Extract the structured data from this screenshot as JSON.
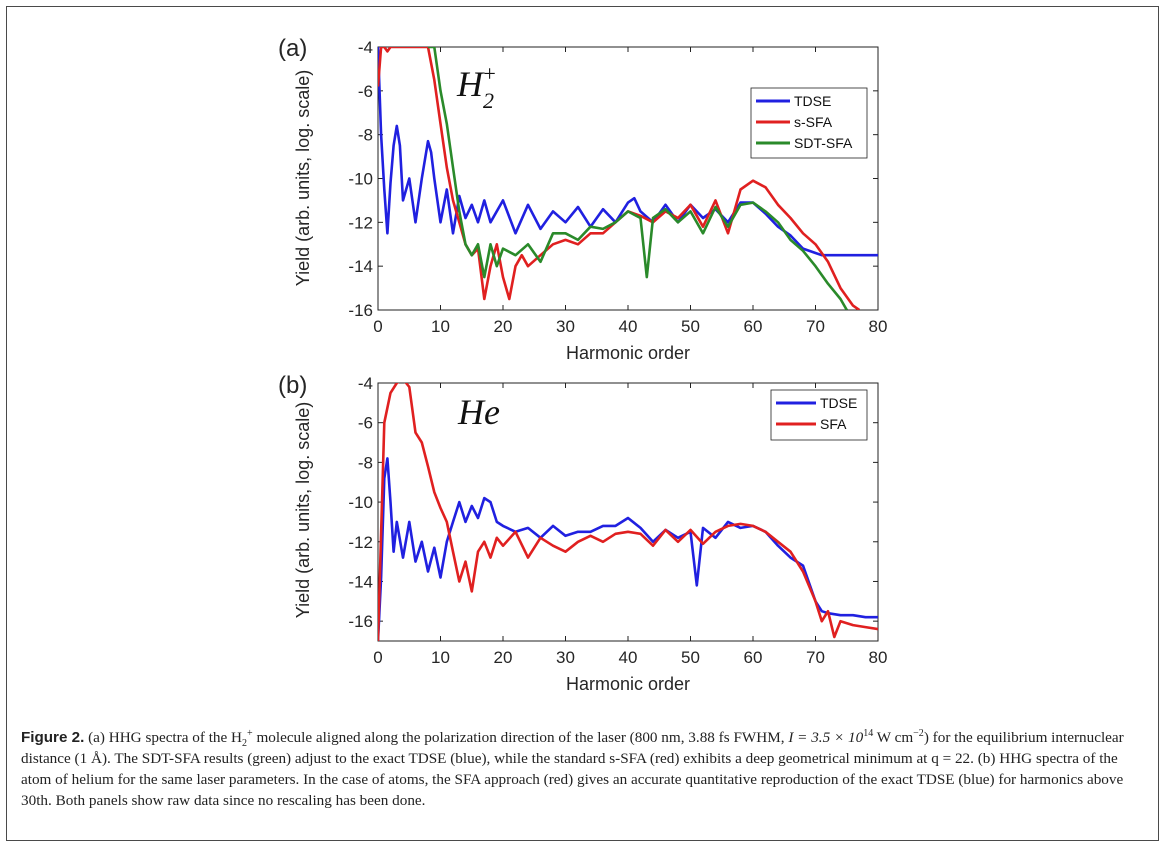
{
  "figure": {
    "caption_label": "Figure 2.",
    "caption_part1": "(a) HHG spectra of the H",
    "caption_sub": "2",
    "caption_sup": "+",
    "caption_part2": " molecule aligned along the polarization direction of the laser (800  nm, 3.88 fs FWHM, ",
    "caption_eq": "I = 3.5 × 10",
    "caption_exp": "14",
    "caption_unit": " W cm",
    "caption_unitexp": "−2",
    "caption_part3": ") for the equilibrium internuclear distance (1 Å). The SDT-SFA results (green) adjust to the exact TDSE (blue), while the standard s-SFA (red) exhibits a deep geometrical minimum at q = 22. (b) HHG spectra of the atom of helium for the same laser parameters. In the case of atoms, the SFA approach (red) gives an accurate quantitative reproduction of the exact TDSE (blue) for harmonics above 30th. Both panels show raw data since no rescaling has been done."
  },
  "chart_data": [
    {
      "type": "line",
      "panel_label": "(a)",
      "annotation": "H",
      "annotation_sub": "2",
      "annotation_sup": "+",
      "xlabel": "Harmonic order",
      "ylabel": "Yield (arb. units, log. scale)",
      "xlim": [
        0,
        80
      ],
      "ylim": [
        -16,
        -4
      ],
      "xticks": [
        0,
        10,
        20,
        30,
        40,
        50,
        60,
        70,
        80
      ],
      "yticks": [
        -4,
        -6,
        -8,
        -10,
        -12,
        -14,
        -16
      ],
      "legend_position": "top-right",
      "series": [
        {
          "name": "TDSE",
          "color": "#2020e0",
          "x": [
            0,
            0.5,
            1,
            1.5,
            2,
            2.5,
            3,
            3.5,
            4,
            5,
            6,
            7,
            8,
            8.5,
            9,
            10,
            11,
            12,
            13,
            14,
            15,
            16,
            17,
            18,
            20,
            22,
            24,
            26,
            28,
            30,
            32,
            34,
            36,
            38,
            40,
            41,
            42,
            44,
            46,
            48,
            50,
            52,
            54,
            56,
            58,
            60,
            62,
            64,
            66,
            68,
            70,
            71,
            72,
            74,
            76,
            78,
            80
          ],
          "y": [
            -4,
            -8,
            -10.5,
            -12.5,
            -10.2,
            -8.5,
            -7.6,
            -8.5,
            -11,
            -10,
            -12,
            -10,
            -8.3,
            -8.8,
            -10,
            -12,
            -10.5,
            -12.5,
            -10.8,
            -11.8,
            -11.2,
            -12,
            -11,
            -12,
            -11,
            -12.5,
            -11.2,
            -12.3,
            -11.5,
            -12,
            -11.3,
            -12.2,
            -11.4,
            -12,
            -11.1,
            -10.9,
            -11.5,
            -12,
            -11.2,
            -12,
            -11.2,
            -11.8,
            -11.4,
            -12,
            -11.1,
            -11.1,
            -11.6,
            -12.2,
            -12.6,
            -13.2,
            -13.4,
            -13.5,
            -13.5,
            -13.5,
            -13.5,
            -13.5,
            -13.5
          ]
        },
        {
          "name": "s-SFA",
          "color": "#e02020",
          "x": [
            0,
            0.5,
            1,
            1.5,
            2,
            5,
            8,
            9,
            10,
            11,
            12,
            13,
            14,
            15,
            16,
            17,
            18,
            19,
            20,
            21,
            22,
            23,
            24,
            26,
            28,
            30,
            32,
            34,
            36,
            38,
            40,
            42,
            44,
            46,
            48,
            50,
            52,
            54,
            56,
            58,
            60,
            62,
            64,
            66,
            68,
            70,
            72,
            74,
            76,
            77
          ],
          "y": [
            -5.8,
            -4,
            -4,
            -4.2,
            -4,
            -4,
            -4,
            -5.5,
            -7.5,
            -9.5,
            -11,
            -12,
            -13,
            -13.5,
            -13.2,
            -15.5,
            -14,
            -13,
            -14.5,
            -15.5,
            -14,
            -13.5,
            -14,
            -13.5,
            -13,
            -12.8,
            -13,
            -12.5,
            -12.5,
            -12,
            -11.5,
            -11.7,
            -12,
            -11.5,
            -11.8,
            -11.2,
            -12.2,
            -11,
            -12.5,
            -10.5,
            -10.1,
            -10.4,
            -11.2,
            -11.8,
            -12.5,
            -13,
            -13.8,
            -15,
            -15.8,
            -16
          ]
        },
        {
          "name": "SDT-SFA",
          "color": "#2a8a2a",
          "x": [
            8,
            9,
            10,
            11,
            12,
            13,
            14,
            15,
            16,
            17,
            18,
            19,
            20,
            22,
            24,
            26,
            28,
            30,
            32,
            34,
            36,
            38,
            40,
            42,
            43,
            44,
            46,
            48,
            50,
            52,
            54,
            56,
            58,
            60,
            62,
            64,
            66,
            68,
            70,
            72,
            74,
            75
          ],
          "y": [
            -4,
            -4,
            -6,
            -7.5,
            -9.5,
            -11.5,
            -13,
            -13.5,
            -13,
            -14.5,
            -13,
            -14,
            -13.2,
            -13.5,
            -13,
            -13.8,
            -12.5,
            -12.5,
            -12.8,
            -12.2,
            -12.3,
            -12,
            -11.5,
            -11.8,
            -14.5,
            -11.8,
            -11.4,
            -12,
            -11.5,
            -12.5,
            -11.3,
            -12.2,
            -11.2,
            -11.1,
            -11.5,
            -12,
            -12.8,
            -13.3,
            -14,
            -14.8,
            -15.5,
            -16
          ]
        }
      ]
    },
    {
      "type": "line",
      "panel_label": "(b)",
      "annotation": "He",
      "xlabel": "Harmonic order",
      "ylabel": "Yield (arb. units, log. scale)",
      "xlim": [
        0,
        80
      ],
      "ylim": [
        -17,
        -4
      ],
      "xticks": [
        0,
        10,
        20,
        30,
        40,
        50,
        60,
        70,
        80
      ],
      "yticks": [
        -4,
        -6,
        -8,
        -10,
        -12,
        -14,
        -16
      ],
      "legend_position": "top-right",
      "series": [
        {
          "name": "TDSE",
          "color": "#2020e0",
          "x": [
            0,
            0.5,
            1,
            1.5,
            2,
            2.5,
            3,
            4,
            5,
            6,
            7,
            8,
            9,
            10,
            11,
            12,
            13,
            14,
            15,
            16,
            17,
            18,
            19,
            20,
            22,
            24,
            26,
            28,
            30,
            32,
            34,
            36,
            38,
            40,
            42,
            44,
            46,
            48,
            50,
            51,
            52,
            54,
            56,
            58,
            60,
            62,
            64,
            66,
            68,
            70,
            71,
            72,
            74,
            76,
            78,
            80
          ],
          "y": [
            -17,
            -13.8,
            -8.8,
            -7.8,
            -10,
            -12.5,
            -11,
            -12.8,
            -11,
            -13,
            -12,
            -13.5,
            -12.3,
            -13.8,
            -12,
            -11,
            -10,
            -11,
            -10.2,
            -10.8,
            -9.8,
            -10,
            -11,
            -11.2,
            -11.5,
            -11.3,
            -11.8,
            -11.2,
            -11.7,
            -11.5,
            -11.5,
            -11.2,
            -11.2,
            -10.8,
            -11.3,
            -12,
            -11.4,
            -11.8,
            -11.5,
            -14.2,
            -11.3,
            -11.8,
            -11,
            -11.3,
            -11.2,
            -11.5,
            -12.2,
            -12.8,
            -13.2,
            -15,
            -15.5,
            -15.6,
            -15.7,
            -15.7,
            -15.8,
            -15.8
          ]
        },
        {
          "name": "SFA",
          "color": "#e02020",
          "x": [
            0,
            1,
            2,
            3,
            4,
            5,
            6,
            7,
            8,
            9,
            10,
            11,
            12,
            13,
            14,
            15,
            16,
            17,
            18,
            19,
            20,
            22,
            24,
            26,
            28,
            30,
            32,
            34,
            36,
            38,
            40,
            42,
            44,
            46,
            48,
            50,
            52,
            54,
            56,
            58,
            60,
            62,
            64,
            66,
            68,
            70,
            71,
            72,
            73,
            74,
            76,
            78,
            80
          ],
          "y": [
            -17,
            -6,
            -4.5,
            -4,
            -3.8,
            -4.2,
            -6.5,
            -7,
            -8.2,
            -9.5,
            -10.3,
            -11,
            -12.5,
            -14,
            -13,
            -14.5,
            -12.5,
            -12,
            -12.8,
            -11.8,
            -12.2,
            -11.5,
            -12.8,
            -11.8,
            -12.2,
            -12.5,
            -12,
            -11.7,
            -12,
            -11.6,
            -11.5,
            -11.6,
            -12.2,
            -11.4,
            -12,
            -11.4,
            -12.1,
            -11.5,
            -11.2,
            -11.1,
            -11.2,
            -11.5,
            -12,
            -12.5,
            -13.5,
            -15,
            -16,
            -15.5,
            -16.8,
            -16,
            -16.2,
            -16.3,
            -16.4
          ]
        }
      ]
    }
  ]
}
